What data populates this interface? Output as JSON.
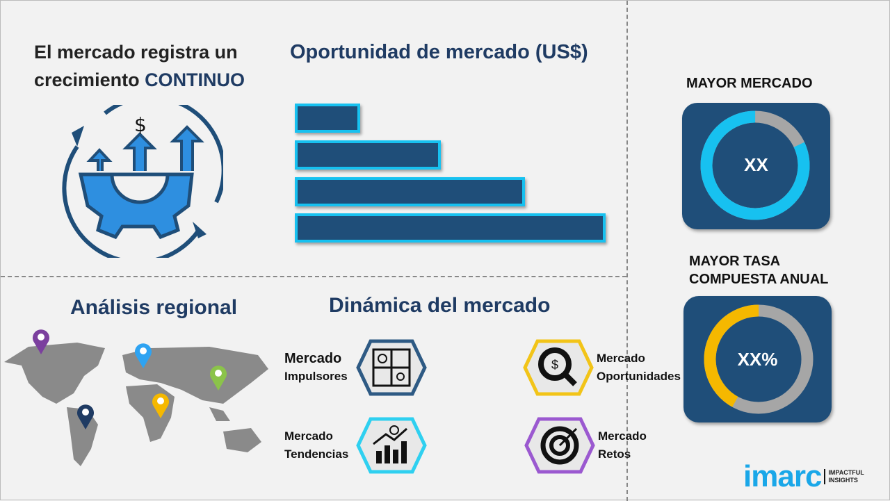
{
  "growth": {
    "line1": "El mercado registra un",
    "line2_prefix": "crecimiento ",
    "line2_emph": "CONTINUO"
  },
  "opportunity": {
    "title": "Oportunidad de mercado (US$)",
    "bars": [
      0.21,
      0.47,
      0.74,
      1.0
    ],
    "colors": {
      "fill": "#1f4e79",
      "border": "#17c1f0"
    }
  },
  "regional": {
    "title": "Análisis regional",
    "pins": [
      {
        "color": "#7b3f9e"
      },
      {
        "color": "#2ea3f2"
      },
      {
        "color": "#8bc34a"
      },
      {
        "color": "#f5b800"
      },
      {
        "color": "#1f3b63"
      }
    ]
  },
  "dynamics": {
    "title": "Dinámica del mercado",
    "items": [
      {
        "line1": "Mercado",
        "line2": "Impulsores",
        "color": "#2e5a84",
        "icon": "puzzle-icon"
      },
      {
        "line1": "Mercado",
        "line2": "Oportunidades",
        "color": "#f2c418",
        "icon": "magnifier-dollar-icon"
      },
      {
        "line1": "Mercado",
        "line2": "Tendencias",
        "color": "#2fd0f0",
        "icon": "growth-chart-icon"
      },
      {
        "line1": "Mercado",
        "line2": "Retos",
        "color": "#9b59d0",
        "icon": "target-icon"
      }
    ]
  },
  "largest": {
    "title": "MAYOR MERCADO",
    "value": "XX",
    "fraction": 0.82,
    "color": "#17c1f0"
  },
  "cagr": {
    "title_line1": "MAYOR TASA",
    "title_line2": "COMPUESTA ANUAL",
    "value": "XX%",
    "fraction": 0.42,
    "color": "#f5b800"
  },
  "logo": {
    "brand": "imarc",
    "tag1": "IMPACTFUL",
    "tag2": "INSIGHTS",
    "color": "#1aa7e8"
  }
}
